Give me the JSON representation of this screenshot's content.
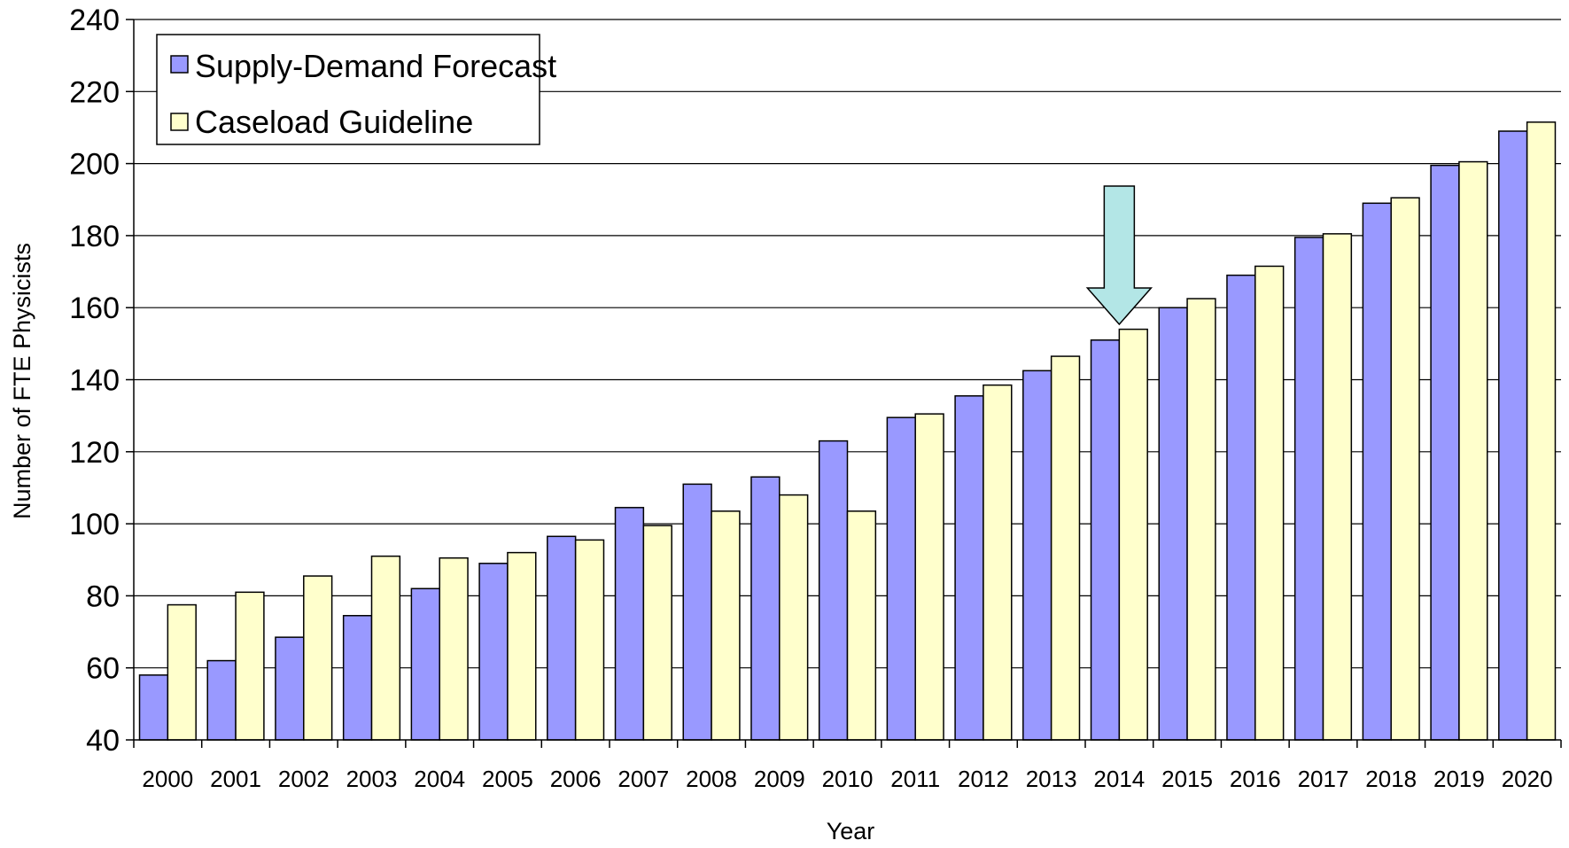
{
  "chart_data": {
    "type": "bar",
    "title": "",
    "xlabel": "Year",
    "ylabel": "Number of FTE Physicists",
    "ylim": [
      40,
      240
    ],
    "yticks": [
      40,
      60,
      80,
      100,
      120,
      140,
      160,
      180,
      200,
      220,
      240
    ],
    "grid": true,
    "legend_position": "top-left",
    "categories": [
      "2000",
      "2001",
      "2002",
      "2003",
      "2004",
      "2005",
      "2006",
      "2007",
      "2008",
      "2009",
      "2010",
      "2011",
      "2012",
      "2013",
      "2014",
      "2015",
      "2016",
      "2017",
      "2018",
      "2019",
      "2020"
    ],
    "series": [
      {
        "name": "Supply-Demand Forecast",
        "color": "#9999ff",
        "values": [
          58,
          62,
          68.5,
          74.5,
          82,
          89,
          96.5,
          104.5,
          111,
          113,
          123,
          129.5,
          135.5,
          142.5,
          151,
          160,
          169,
          179.5,
          189,
          199.5,
          209
        ]
      },
      {
        "name": "Caseload Guideline",
        "color": "#ffffcc",
        "values": [
          77.5,
          81,
          85.5,
          91,
          90.5,
          92,
          95.5,
          99.5,
          103.5,
          108,
          103.5,
          130.5,
          138.5,
          146.5,
          154,
          162.5,
          171.5,
          180.5,
          190.5,
          200.5,
          211.5
        ]
      }
    ],
    "annotations": [
      {
        "type": "arrow",
        "target_category": "2014",
        "color": "#b3e6e6",
        "direction": "down"
      }
    ]
  }
}
